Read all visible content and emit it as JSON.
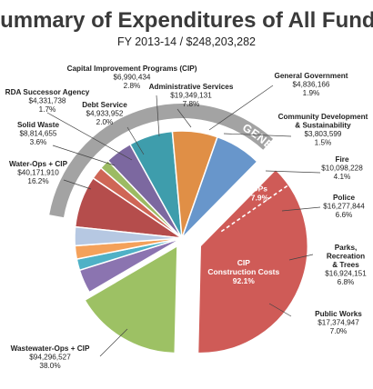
{
  "chart_data": {
    "type": "pie",
    "title": "Summary of Expenditures of All Funds",
    "subtitle": "FY 2013-14 / $248,203,282",
    "group_label": "GENERAL FUND",
    "slices": [
      {
        "name": "Administrative Services",
        "amount": "$19,349,131",
        "percent": "7.8%",
        "value": 7.8,
        "color": "#b54d4c"
      },
      {
        "name": "General Government",
        "amount": "$4,836,166",
        "percent": "1.9%",
        "value": 1.9,
        "color": "#cf6656"
      },
      {
        "name": "Community Development & Sustainability",
        "amount": "$3,803,599",
        "percent": "1.5%",
        "value": 1.5,
        "color": "#9cbb63"
      },
      {
        "name": "Fire",
        "amount": "$10,098,228",
        "percent": "4.1%",
        "value": 4.1,
        "color": "#7c68a0"
      },
      {
        "name": "Police",
        "amount": "$16,277,844",
        "percent": "6.6%",
        "value": 6.6,
        "color": "#3e9dac"
      },
      {
        "name": "Parks, Recreation & Trees",
        "amount": "$16,924,151",
        "percent": "6.8%",
        "value": 6.8,
        "color": "#e08f46"
      },
      {
        "name": "Public Works",
        "amount": "$17,374,947",
        "percent": "7.0%",
        "value": 7.0,
        "color": "#6896cb"
      },
      {
        "name": "Wastewater-Ops + CIP",
        "amount": "$94,296,527",
        "percent": "38.0%",
        "value": 38.0,
        "color": "#cf5b57",
        "parts": [
          {
            "name": "CIP Construction Costs",
            "percent": "92.1%"
          },
          {
            "name": "OPs",
            "percent": "7.9%"
          }
        ]
      },
      {
        "name": "Water-Ops + CIP",
        "amount": "$40,171,910",
        "percent": "16.2%",
        "value": 16.2,
        "color": "#9dc164"
      },
      {
        "name": "Solid Waste",
        "amount": "$8,814,655",
        "percent": "3.6%",
        "value": 3.6,
        "color": "#8b74b0"
      },
      {
        "name": "RDA Successor Agency",
        "amount": "$4,331,738",
        "percent": "1.7%",
        "value": 1.7,
        "color": "#4fb1c6"
      },
      {
        "name": "Debt Service",
        "amount": "$4,933,952",
        "percent": "2.0%",
        "value": 2.0,
        "color": "#f4a15a"
      },
      {
        "name": "Capital Improvement Programs (CIP)",
        "amount": "$6,990,434",
        "percent": "2.8%",
        "value": 2.8,
        "color": "#b6c8e2"
      }
    ]
  }
}
